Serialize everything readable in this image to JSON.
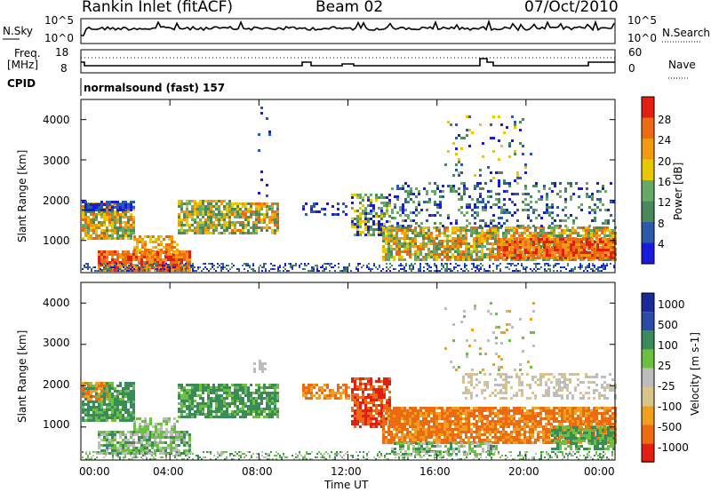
{
  "header": {
    "title": "Rankin Inlet (fitACF)",
    "beam": "Beam 02",
    "date": "07/Oct/2010"
  },
  "top_panels": {
    "nsky_label": "N.Sky",
    "nsky_ticks": [
      "10^5",
      "10^0"
    ],
    "nsearch_label": "N.Search",
    "nsearch_ticks": [
      "10^5",
      "10^0"
    ],
    "freq_label_1": "Freq.",
    "freq_label_2": "[MHz]",
    "freq_ticks": [
      "18",
      "8"
    ],
    "nave_label": "Nave",
    "nave_ticks": [
      "60",
      "0"
    ],
    "cpid_label": "CPID",
    "cpid_text": "normalsound (fast) 157"
  },
  "colors": {
    "power_scale": [
      "#1a1adc",
      "#2a5aa8",
      "#4a8a5a",
      "#66aa66",
      "#e8c800",
      "#f29a10",
      "#ee6a10",
      "#e02010"
    ],
    "velocity_scale": [
      "#1a2a9a",
      "#2a4aa6",
      "#3a8a5a",
      "#6cc040",
      "#bdbdbd",
      "#d9c58a",
      "#f0a020",
      "#ee6a10",
      "#e02010"
    ]
  },
  "chart_data": [
    {
      "type": "heatmap",
      "panel": "power",
      "ylabel": "Slant Range [km]",
      "y_ticks": [
        "1000",
        "2000",
        "3000",
        "4000"
      ],
      "ylim": [
        200,
        4500
      ],
      "colorbar_label": "Power [dB]",
      "colorbar_ticks": [
        "4",
        "8",
        "12",
        "16",
        "20",
        "24",
        "28"
      ],
      "colorbar_range": [
        0,
        30
      ]
    },
    {
      "type": "heatmap",
      "panel": "velocity",
      "ylabel": "Slant Range [km]",
      "y_ticks": [
        "1000",
        "2000",
        "3000",
        "4000"
      ],
      "ylim": [
        200,
        4500
      ],
      "colorbar_label": "Velocity [m s-1]",
      "colorbar_ticks": [
        "1000",
        "500",
        "100",
        "25",
        "-25",
        "-100",
        "-500",
        "-1000"
      ],
      "xlabel": "Time UT",
      "x_ticks": [
        "00:00",
        "04:00",
        "08:00",
        "12:00",
        "16:00",
        "20:00",
        "00:00"
      ]
    }
  ]
}
